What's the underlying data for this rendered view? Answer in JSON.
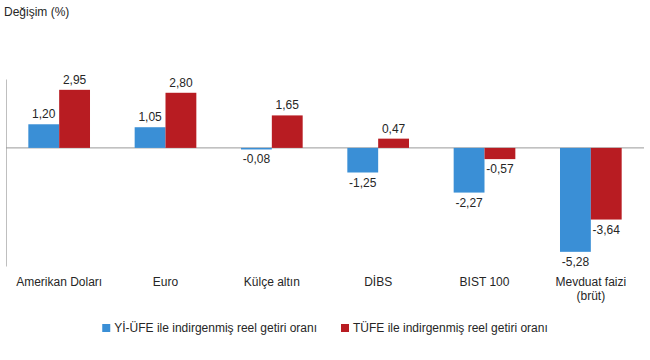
{
  "chart_data": {
    "type": "bar",
    "y_label": "Değişim (%)",
    "categories": [
      "Amerikan Doları",
      "Euro",
      "Külçe altın",
      "DİBS",
      "BIST 100",
      "Mevduat faizi\n(brüt)"
    ],
    "series": [
      {
        "name": "Yİ-ÜFE ile indirgenmiş reel getiri oranı",
        "color": "#3a8fd6",
        "values": [
          1.2,
          1.05,
          -0.08,
          -1.25,
          -2.27,
          -5.28
        ],
        "value_labels": [
          "1,20",
          "1,05",
          "-0,08",
          "-1,25",
          "-2,27",
          "-5,28"
        ]
      },
      {
        "name": "TÜFE ile indirgenmiş reel getiri oranı",
        "color": "#b81c22",
        "values": [
          2.95,
          2.8,
          1.65,
          0.47,
          -0.57,
          -3.64
        ],
        "value_labels": [
          "2,95",
          "2,80",
          "1,65",
          "0,47",
          "-0,57",
          "-3,64"
        ]
      }
    ],
    "ylim": [
      -6,
      3.5
    ],
    "yticks": [
      0
    ],
    "grid": false,
    "legend": "bottom",
    "data_labels": true,
    "tick_labels": "x"
  }
}
